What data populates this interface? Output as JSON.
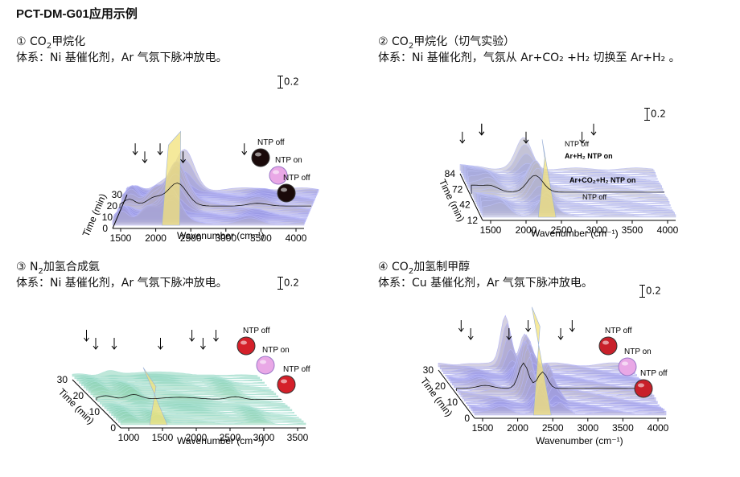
{
  "page": {
    "title": "PCT-DM-G01应用示例"
  },
  "panels": [
    {
      "num": "①",
      "head_pre": "CO",
      "head_sub": "2",
      "head_post": "甲烷化",
      "system": "体系：Ni 基催化剂，Ar 气氛下脉冲放电。",
      "scale": "0.2",
      "xlabel": "Wavenumber (cm⁻¹)",
      "ylabel": "Time (min)",
      "xticks": [
        "1500",
        "2000",
        "2500",
        "3000",
        "3500",
        "4000"
      ],
      "yticks": [
        "0",
        "10",
        "20",
        "30"
      ],
      "states": [
        "NTP off",
        "NTP on",
        "NTP off"
      ],
      "colors": {
        "low": "#8f8ff2",
        "high": "#f2e27a",
        "ball": "#1a0a0a"
      }
    },
    {
      "num": "②",
      "head_pre": "CO",
      "head_sub": "2",
      "head_post": "甲烷化（切气实验）",
      "system": "体系：Ni 基催化剂，气氛从 Ar+CO₂ +H₂ 切换至 Ar+H₂ 。",
      "scale": "0.2",
      "xlabel": "Wavenumber (cm⁻¹)",
      "ylabel": "Time (min)",
      "xticks": [
        "1500",
        "2000",
        "2500",
        "3000",
        "3500",
        "4000"
      ],
      "yticks": [
        "12",
        "42",
        "72",
        "84"
      ],
      "states": [
        "NTP off",
        "Ar+H₂ NTP on",
        "Ar+CO₂+H₂ NTP on",
        "NTP off"
      ],
      "colors": {
        "low": "#9aa0f0",
        "high": "#f2e27a"
      }
    },
    {
      "num": "③",
      "head_pre": "N",
      "head_sub": "2",
      "head_post": "加氢合成氨",
      "system": "体系：Ni 基催化剂，Ar 气氛下脉冲放电。",
      "scale": "0.2",
      "xlabel": "Wavenumber (cm⁻¹)",
      "ylabel": "Time (min)",
      "xticks": [
        "1000",
        "1500",
        "2000",
        "2500",
        "3000",
        "3500"
      ],
      "yticks": [
        "0",
        "10",
        "20",
        "30"
      ],
      "states": [
        "NTP off",
        "NTP on",
        "NTP off"
      ],
      "colors": {
        "low": "#7fd2c0",
        "high": "#f2e27a",
        "ball": "#d4202a"
      }
    },
    {
      "num": "④",
      "head_pre": "CO",
      "head_sub": "2",
      "head_post": "加氢制甲醇",
      "system": "体系：Cu 基催化剂，Ar 气氛下脉冲放电。",
      "scale": "0.2",
      "xlabel": "Wavenumber (cm⁻¹)",
      "ylabel": "Time (min)",
      "xticks": [
        "1500",
        "2000",
        "2500",
        "3000",
        "3500",
        "4000"
      ],
      "yticks": [
        "0",
        "10",
        "20",
        "30"
      ],
      "states": [
        "NTP off",
        "NTP on",
        "NTP off"
      ],
      "colors": {
        "low": "#8f8ff2",
        "high": "#f2e27a",
        "ball": "#c8202a"
      }
    }
  ]
}
